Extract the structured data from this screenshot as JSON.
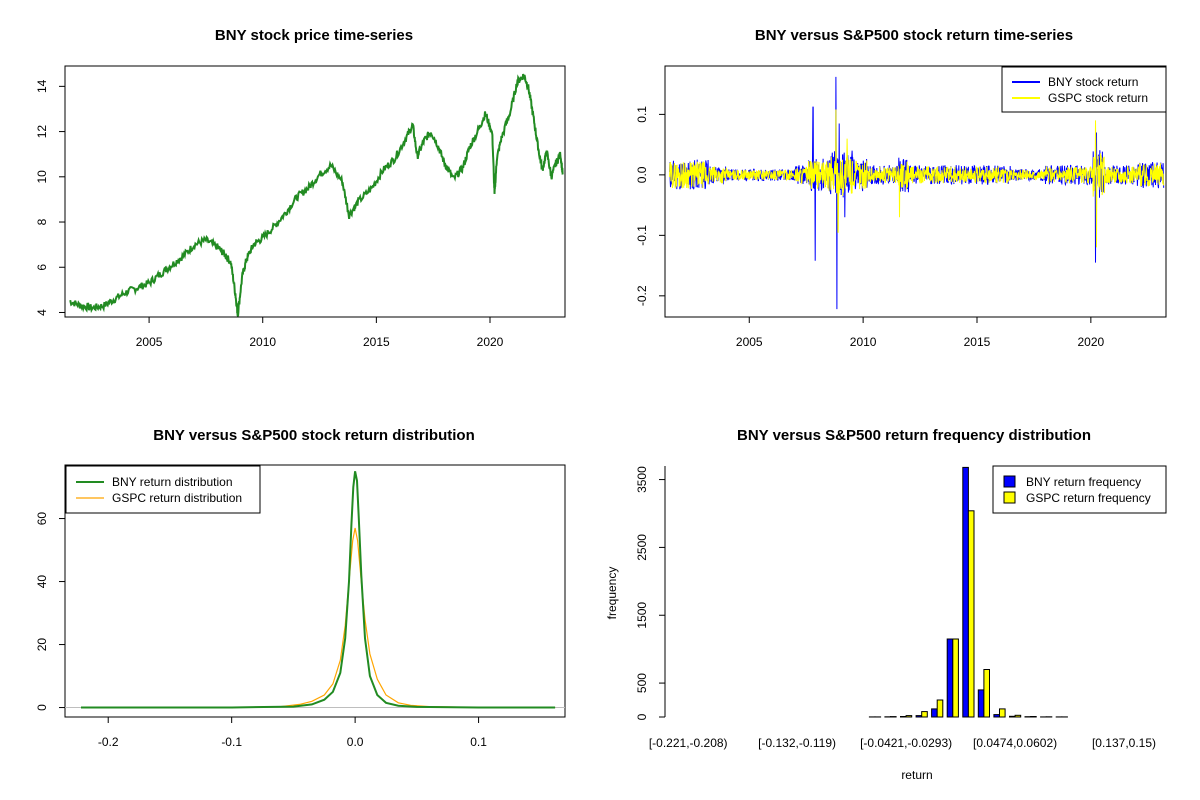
{
  "colors": {
    "price": "#228b22",
    "bny_return": "#0000ff",
    "gspc_return": "#ffff00",
    "bny_density": "#228b22",
    "gspc_density": "#ffa500",
    "bny_bar": "#0000ff",
    "gspc_bar": "#ffff00"
  },
  "chart_data": [
    {
      "type": "line",
      "title": "BNY stock price time-series",
      "xlabel": "",
      "ylabel": "",
      "xlim": [
        2001.3,
        2023.3
      ],
      "ylim": [
        3.8,
        14.9
      ],
      "xticks": [
        2005,
        2010,
        2015,
        2020
      ],
      "yticks": [
        4,
        6,
        8,
        10,
        12,
        14
      ],
      "series": [
        {
          "x": [
            2001.5,
            2002.0,
            2002.5,
            2003.0,
            2003.5,
            2004.0,
            2004.5,
            2005.0,
            2005.5,
            2006.0,
            2006.5,
            2007.0,
            2007.5,
            2008.0,
            2008.3,
            2008.6,
            2008.8,
            2008.9,
            2009.1,
            2009.3,
            2009.6,
            2010.0,
            2010.5,
            2011.0,
            2011.5,
            2012.0,
            2012.5,
            2013.0,
            2013.5,
            2013.8,
            2014.2,
            2014.8,
            2015.3,
            2015.8,
            2016.3,
            2016.6,
            2016.8,
            2017.1,
            2017.4,
            2017.7,
            2018.0,
            2018.4,
            2018.8,
            2019.1,
            2019.5,
            2019.8,
            2020.1,
            2020.2,
            2020.3,
            2020.5,
            2020.9,
            2021.2,
            2021.5,
            2021.7,
            2021.9,
            2022.1,
            2022.3,
            2022.5,
            2022.7,
            2022.9,
            2023.1,
            2023.2
          ],
          "values": [
            4.5,
            4.3,
            4.2,
            4.3,
            4.6,
            4.9,
            5.1,
            5.3,
            5.7,
            6.1,
            6.5,
            7.0,
            7.2,
            6.9,
            6.6,
            6.2,
            4.8,
            3.9,
            5.6,
            6.4,
            7.0,
            7.3,
            7.8,
            8.4,
            9.1,
            9.5,
            10.1,
            10.5,
            9.8,
            8.3,
            8.9,
            9.5,
            10.3,
            10.8,
            11.7,
            12.3,
            10.9,
            11.6,
            12.0,
            11.4,
            10.6,
            9.9,
            10.4,
            11.3,
            12.1,
            12.8,
            11.9,
            9.2,
            10.8,
            11.7,
            12.9,
            14.2,
            14.5,
            13.9,
            12.7,
            11.4,
            10.3,
            11.1,
            10.0,
            10.6,
            11.0,
            10.1
          ]
        }
      ]
    },
    {
      "type": "line",
      "title": "BNY versus S&P500 stock return time-series",
      "xlabel": "",
      "ylabel": "",
      "xlim": [
        2001.3,
        2023.3
      ],
      "ylim": [
        -0.235,
        0.18
      ],
      "xticks": [
        2005,
        2010,
        2015,
        2020
      ],
      "yticks": [
        -0.2,
        -0.1,
        0.0,
        0.1
      ],
      "ytick_labels": [
        "-0.2",
        "-0.1",
        "0.0",
        "0.1"
      ],
      "legend": "top-right",
      "series": [
        {
          "name": "BNY stock return",
          "spikes": [
            [
              2007.8,
              0.112
            ],
            [
              2007.9,
              -0.142
            ],
            [
              2008.8,
              0.162
            ],
            [
              2008.85,
              -0.222
            ],
            [
              2008.95,
              0.085
            ],
            [
              2009.2,
              -0.07
            ],
            [
              2020.2,
              -0.145
            ],
            [
              2020.25,
              0.07
            ]
          ],
          "noise": 0.016
        },
        {
          "name": "GSPC stock return",
          "spikes": [
            [
              2008.8,
              0.108
            ],
            [
              2008.9,
              -0.095
            ],
            [
              2009.3,
              0.06
            ],
            [
              2011.6,
              -0.07
            ],
            [
              2020.2,
              0.09
            ],
            [
              2020.25,
              -0.12
            ]
          ],
          "noise": 0.014
        }
      ]
    },
    {
      "type": "line",
      "title": "BNY versus S&P500 stock return distribution",
      "xlabel": "",
      "ylabel": "",
      "xlim": [
        -0.235,
        0.17
      ],
      "ylim": [
        0,
        77
      ],
      "xticks": [
        -0.2,
        -0.1,
        0.0,
        0.1
      ],
      "xtick_labels": [
        "-0.2",
        "-0.1",
        "0.0",
        "0.1"
      ],
      "yticks": [
        0,
        20,
        40,
        60
      ],
      "legend": "top-left",
      "series": [
        {
          "name": "BNY return distribution",
          "x": [
            -0.222,
            -0.1,
            -0.05,
            -0.035,
            -0.025,
            -0.018,
            -0.012,
            -0.008,
            -0.005,
            -0.003,
            -0.0015,
            0.0,
            0.0015,
            0.003,
            0.005,
            0.008,
            0.012,
            0.018,
            0.025,
            0.035,
            0.05,
            0.1,
            0.162
          ],
          "values": [
            0,
            0,
            0.3,
            1.0,
            2.5,
            5.0,
            11.0,
            22.0,
            40.0,
            58.0,
            70.0,
            75.0,
            72.0,
            60.0,
            42.0,
            22.0,
            10.0,
            4.0,
            1.5,
            0.6,
            0.2,
            0,
            0
          ]
        },
        {
          "name": "GSPC return distribution",
          "x": [
            -0.222,
            -0.1,
            -0.06,
            -0.045,
            -0.035,
            -0.025,
            -0.018,
            -0.012,
            -0.008,
            -0.005,
            -0.002,
            0.0,
            0.002,
            0.005,
            0.008,
            0.012,
            0.018,
            0.025,
            0.035,
            0.045,
            0.06,
            0.1,
            0.162
          ],
          "values": [
            0,
            0,
            0.3,
            1.0,
            2.0,
            4.0,
            7.5,
            15.0,
            26.0,
            40.0,
            53.0,
            57.0,
            53.0,
            40.0,
            28.0,
            17.0,
            9.0,
            4.0,
            1.5,
            0.7,
            0.3,
            0,
            0
          ]
        }
      ]
    },
    {
      "type": "bar",
      "title": "BNY versus S&P500 return frequency distribution",
      "xlabel": "return",
      "ylabel": "frequency",
      "ylim": [
        0,
        3700
      ],
      "yticks": [
        0,
        500,
        1500,
        2500,
        3500
      ],
      "legend": "top-right",
      "tick_labels": [
        "[-0.221,-0.208)",
        "[-0.132,-0.119)",
        "[-0.0421,-0.0293)",
        "[0.0474,0.0602)",
        "[0.137,0.15)"
      ],
      "tick_bins": [
        0,
        7,
        14,
        21,
        28
      ],
      "bin_count": 30,
      "series": [
        {
          "name": "BNY return frequency",
          "values": [
            0,
            0,
            0,
            0,
            0,
            0,
            0,
            0,
            0,
            0,
            0,
            0,
            1,
            3,
            8,
            20,
            120,
            1150,
            3680,
            400,
            35,
            10,
            4,
            2,
            1,
            0,
            0,
            0,
            0,
            0
          ]
        },
        {
          "name": "GSPC return frequency",
          "values": [
            0,
            0,
            0,
            0,
            0,
            0,
            0,
            0,
            0,
            0,
            0,
            0,
            2,
            6,
            20,
            80,
            250,
            1150,
            3040,
            700,
            120,
            25,
            8,
            3,
            1,
            0,
            0,
            0,
            0,
            0
          ]
        }
      ]
    }
  ]
}
